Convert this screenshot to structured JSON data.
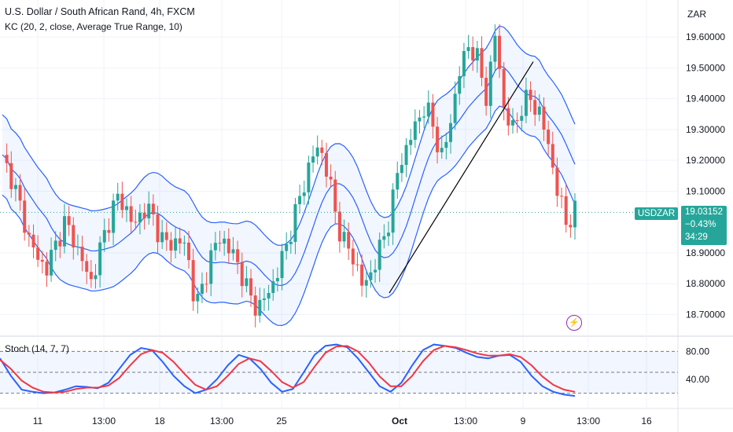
{
  "header": {
    "title": "U.S. Dollar / South African Rand, 4h, FXCM",
    "indicator": "KC (20, 2, close, Average True Range, 10)",
    "currency": "ZAR"
  },
  "price_tag": {
    "symbol": "USDZAR",
    "price": "19.03152",
    "change": "−0.43%",
    "countdown": "34:29"
  },
  "stoch_label": "Stoch (14, 7, 7)",
  "signal_icon": "lightning-icon",
  "colors": {
    "up": "#26a69a",
    "down": "#ef5350",
    "channel": "#2962ff",
    "stoch_k": "#2962ff",
    "stoch_d": "#f23645"
  },
  "chart_data": [
    {
      "type": "candlestick",
      "ylim": [
        18.63,
        19.72
      ],
      "y_ticks": [
        "19.60000",
        "19.50000",
        "19.40000",
        "19.30000",
        "19.20000",
        "19.10000",
        "18.90000",
        "18.80000",
        "18.70000"
      ],
      "x_ticks": [
        "11",
        "13:00",
        "18",
        "13:00",
        "25",
        "Oct",
        "13:00",
        "9",
        "13:00",
        "16"
      ],
      "close_path": [
        19.2,
        19.15,
        19.05,
        18.95,
        18.88,
        18.85,
        18.92,
        19.0,
        18.95,
        18.88,
        18.8,
        18.9,
        19.0,
        19.08,
        19.05,
        18.98,
        19.05,
        19.02,
        18.95,
        18.92,
        18.95,
        18.9,
        18.72,
        18.82,
        18.92,
        18.95,
        18.9,
        18.85,
        18.76,
        18.72,
        18.76,
        18.82,
        18.9,
        19.0,
        19.1,
        19.2,
        19.25,
        19.15,
        19.0,
        18.92,
        18.88,
        18.78,
        18.85,
        18.92,
        19.02,
        19.18,
        19.25,
        19.32,
        19.38,
        19.3,
        19.2,
        19.35,
        19.5,
        19.58,
        19.52,
        19.4,
        19.62,
        19.35,
        19.3,
        19.38,
        19.4,
        19.35,
        19.25,
        19.1,
        19.0,
        19.03
      ],
      "trendline": {
        "from": [
          18.77,
          0.42
        ],
        "to": [
          19.52,
          0.63
        ]
      }
    },
    {
      "type": "line",
      "title": "Stoch (14, 7, 7)",
      "ylim": [
        0,
        100
      ],
      "y_ticks": [
        "80.00",
        "40.00"
      ],
      "levels": [
        80,
        50,
        20
      ],
      "series": [
        {
          "values": [
            70,
            45,
            25,
            22,
            20,
            21,
            25,
            30,
            29,
            27,
            35,
            55,
            75,
            85,
            82,
            65,
            45,
            30,
            20,
            25,
            40,
            60,
            75,
            70,
            55,
            35,
            22,
            26,
            50,
            75,
            88,
            90,
            86,
            70,
            50,
            30,
            22,
            35,
            60,
            82,
            90,
            88,
            85,
            78,
            72,
            70,
            74,
            75,
            65,
            45,
            30,
            22,
            18,
            16
          ]
        },
        {
          "values": [
            68,
            55,
            38,
            28,
            22,
            21,
            22,
            26,
            28,
            28,
            31,
            42,
            60,
            76,
            82,
            78,
            65,
            48,
            32,
            25,
            30,
            45,
            62,
            70,
            66,
            52,
            36,
            28,
            36,
            58,
            78,
            87,
            88,
            80,
            64,
            44,
            30,
            30,
            45,
            66,
            82,
            88,
            86,
            82,
            77,
            74,
            74,
            76,
            72,
            60,
            44,
            32,
            25,
            22
          ]
        }
      ]
    }
  ]
}
